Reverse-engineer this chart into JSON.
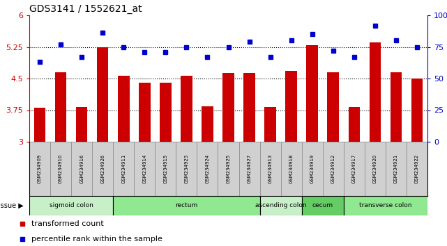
{
  "title": "GDS3141 / 1552621_at",
  "samples": [
    "GSM234909",
    "GSM234910",
    "GSM234916",
    "GSM234926",
    "GSM234911",
    "GSM234914",
    "GSM234915",
    "GSM234923",
    "GSM234924",
    "GSM234925",
    "GSM234927",
    "GSM234913",
    "GSM234918",
    "GSM234919",
    "GSM234912",
    "GSM234917",
    "GSM234920",
    "GSM234921",
    "GSM234922"
  ],
  "bar_values": [
    3.8,
    4.65,
    3.82,
    5.24,
    4.57,
    4.4,
    4.4,
    4.57,
    3.84,
    4.63,
    4.63,
    3.82,
    4.68,
    5.29,
    4.65,
    3.82,
    5.36,
    4.65,
    4.5
  ],
  "scatter_values": [
    63,
    77,
    67,
    86,
    75,
    71,
    71,
    75,
    67,
    75,
    79,
    67,
    80,
    85,
    72,
    67,
    92,
    80,
    75
  ],
  "bar_color": "#cc0000",
  "scatter_color": "#0000cc",
  "ylim_left": [
    3.0,
    6.0
  ],
  "ylim_right": [
    0,
    100
  ],
  "yticks_left": [
    3.0,
    3.75,
    4.5,
    5.25,
    6.0
  ],
  "yticks_right": [
    0,
    25,
    50,
    75,
    100
  ],
  "ytick_labels_left": [
    "3",
    "3.75",
    "4.5",
    "5.25",
    "6"
  ],
  "ytick_labels_right": [
    "0",
    "25",
    "50",
    "75",
    "100%"
  ],
  "hlines": [
    3.75,
    4.5,
    5.25
  ],
  "tissue_groups": [
    {
      "label": "sigmoid colon",
      "start": 0,
      "end": 4,
      "color": "#c8f0c8"
    },
    {
      "label": "rectum",
      "start": 4,
      "end": 11,
      "color": "#90e890"
    },
    {
      "label": "ascending colon",
      "start": 11,
      "end": 13,
      "color": "#c8f0c8"
    },
    {
      "label": "cecum",
      "start": 13,
      "end": 15,
      "color": "#66cc66"
    },
    {
      "label": "transverse colon",
      "start": 15,
      "end": 19,
      "color": "#90e890"
    }
  ],
  "tissue_label": "tissue ▶",
  "legend1_label": "transformed count",
  "legend2_label": "percentile rank within the sample",
  "bar_width": 0.55,
  "fig_w": 641,
  "fig_h": 354,
  "dpi": 100
}
